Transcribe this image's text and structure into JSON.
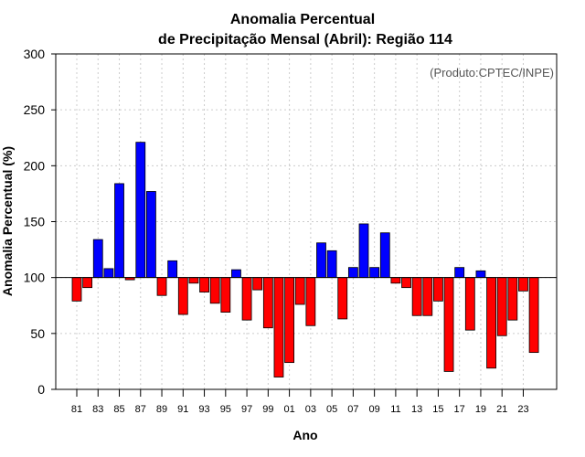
{
  "chart_data": {
    "type": "bar",
    "title_line1": "Anomalia Percentual",
    "title_line2": "de Precipitação Mensal (Abril): Região 114",
    "xlabel": "Ano",
    "ylabel": "Anomalia Percentual (%)",
    "credit": "(Produto:CPTEC/INPE)",
    "ylim": [
      0,
      300
    ],
    "yticks": [
      0,
      50,
      100,
      150,
      200,
      250,
      300
    ],
    "baseline": 100,
    "colors": {
      "above": "#0000ff",
      "below": "#ff0000",
      "outline": "#000000"
    },
    "categories": [
      "81",
      "82",
      "83",
      "84",
      "85",
      "86",
      "87",
      "88",
      "89",
      "90",
      "91",
      "92",
      "93",
      "94",
      "95",
      "96",
      "97",
      "98",
      "99",
      "00",
      "01",
      "02",
      "03",
      "04",
      "05",
      "06",
      "07",
      "08",
      "09",
      "10",
      "11",
      "12",
      "13",
      "14",
      "15",
      "16",
      "17",
      "18",
      "19",
      "20",
      "21",
      "22",
      "23",
      "24"
    ],
    "tick_labels": [
      "81",
      "83",
      "85",
      "87",
      "89",
      "91",
      "93",
      "95",
      "97",
      "99",
      "01",
      "03",
      "05",
      "07",
      "09",
      "11",
      "13",
      "15",
      "17",
      "19",
      "21",
      "23"
    ],
    "values": [
      79,
      91,
      134,
      108,
      184,
      98,
      221,
      177,
      84,
      115,
      67,
      95,
      87,
      77,
      69,
      107,
      62,
      89,
      55,
      11,
      24,
      76,
      57,
      131,
      124,
      63,
      109,
      148,
      109,
      140,
      95,
      91,
      66,
      66,
      79,
      16,
      109,
      53,
      106,
      19,
      48,
      62,
      88,
      33
    ]
  }
}
